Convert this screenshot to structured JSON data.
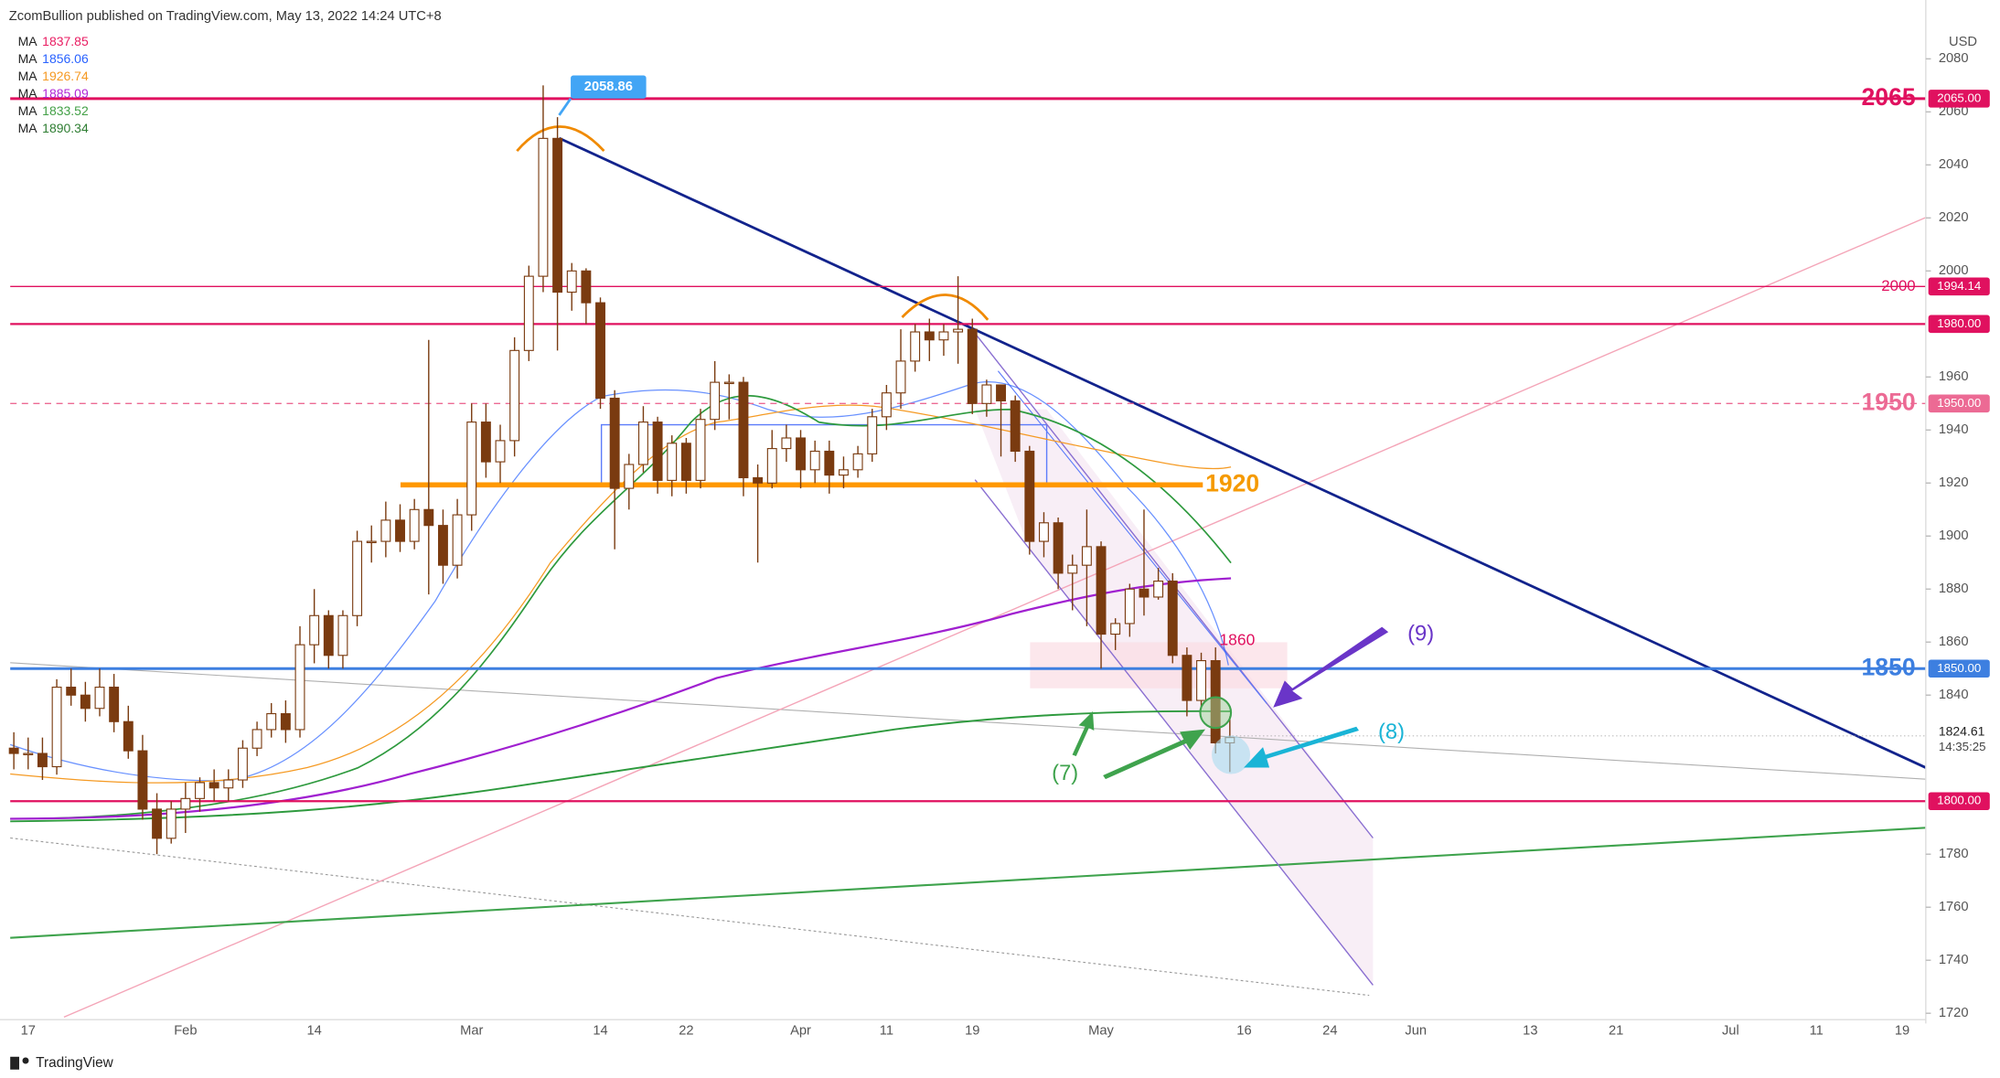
{
  "chart_data": {
    "type": "candlestick",
    "header": "ZcomBullion published on TradingView.com, May 13, 2022 14:24 UTC+8",
    "currency": "USD",
    "footer": "TradingView",
    "categories": [
      null,
      "17",
      null,
      null,
      null,
      null,
      null,
      null,
      null,
      null,
      null,
      null,
      "Feb",
      null,
      null,
      null,
      null,
      null,
      null,
      null,
      null,
      "14",
      null,
      null,
      null,
      null,
      null,
      null,
      null,
      null,
      null,
      null,
      "Mar",
      null,
      null,
      null,
      null,
      null,
      null,
      null,
      null,
      "14",
      null,
      null,
      null,
      null,
      null,
      "22",
      null,
      null,
      null,
      null,
      null,
      null,
      null,
      "Apr",
      null,
      null,
      null,
      null,
      null,
      "11",
      null,
      null,
      null,
      null,
      null,
      "19",
      null,
      null,
      null,
      null,
      null,
      null,
      null,
      null,
      "May",
      null,
      null,
      null,
      null,
      null,
      null,
      null,
      null,
      null,
      "16",
      null,
      null,
      null,
      null,
      null,
      "24",
      null,
      null,
      null,
      null,
      null,
      "Jun",
      null,
      null,
      null,
      null,
      null,
      null,
      null,
      "13",
      null,
      null,
      null,
      null,
      null,
      "21",
      null,
      null,
      null,
      null,
      null,
      null,
      null,
      "Jul",
      null,
      null,
      null,
      null,
      null,
      "11",
      null,
      null,
      null,
      null,
      null,
      "19"
    ],
    "open": [
      1820,
      1818,
      1818,
      1813,
      1843,
      1840,
      1835,
      1843,
      1830,
      1819,
      1797,
      1786,
      1797,
      1801,
      1807,
      1805,
      1808,
      1820,
      1827,
      1833,
      1827,
      1859,
      1870,
      1855,
      1870,
      1898,
      1898,
      1906,
      1898,
      1910,
      1904,
      1889,
      1908,
      1943,
      1928,
      1936,
      1970,
      1998,
      2050,
      1992,
      2000,
      1988,
      1952,
      1918,
      1927,
      1943,
      1921,
      1935,
      1921,
      1944,
      1958,
      1958,
      1922,
      1920,
      1933,
      1937,
      1925,
      1932,
      1923,
      1925,
      1931,
      1945,
      1954,
      1966,
      1977,
      1974,
      1977,
      1978,
      1950,
      1957,
      1951,
      1932,
      1898,
      1905,
      1886,
      1889,
      1896,
      1863,
      1867,
      1880,
      1877,
      1883,
      1855,
      1838,
      1853,
      1822,
      null,
      null,
      null,
      null,
      null,
      null,
      null,
      null,
      null,
      null,
      null,
      null,
      null,
      null,
      null,
      null,
      null,
      null,
      null,
      null,
      null,
      null,
      null,
      null,
      null,
      null,
      null,
      null,
      null,
      null,
      null,
      null,
      null,
      null,
      null,
      null,
      null,
      null,
      null,
      null,
      null,
      null,
      null,
      null,
      null,
      null,
      null
    ],
    "high": [
      1826,
      1824,
      1824,
      1846,
      1850,
      1845,
      1850,
      1848,
      1836,
      1825,
      1803,
      1800,
      1807,
      1809,
      1812,
      1812,
      1823,
      1830,
      1837,
      1838,
      1866,
      1880,
      1872,
      1872,
      1902,
      1904,
      1913,
      1912,
      1914,
      1974,
      1910,
      1914,
      1950,
      1950,
      1942,
      1975,
      2002,
      2070,
      2058,
      2003,
      2001,
      1990,
      1955,
      1931,
      1949,
      1945,
      1938,
      1937,
      1948,
      1966,
      1961,
      1960,
      1927,
      1940,
      1942,
      1940,
      1936,
      1936,
      1930,
      1934,
      1948,
      1957,
      1978,
      1980,
      1982,
      1980,
      1998,
      1982,
      1959,
      1957,
      1953,
      1934,
      1909,
      1907,
      1893,
      1910,
      1898,
      1869,
      1882,
      1910,
      1888,
      1886,
      1858,
      1856,
      1858,
      1832,
      null,
      null,
      null,
      null,
      null,
      null,
      null,
      null,
      null,
      null,
      null,
      null,
      null,
      null,
      null,
      null,
      null,
      null,
      null,
      null,
      null,
      null,
      null,
      null,
      null,
      null,
      null,
      null,
      null,
      null,
      null,
      null,
      null,
      null,
      null,
      null,
      null,
      null,
      null,
      null,
      null,
      null,
      null,
      null,
      null,
      null,
      null
    ],
    "low": [
      1812,
      1812,
      1808,
      1810,
      1836,
      1830,
      1832,
      1826,
      1816,
      1793,
      1780,
      1784,
      1788,
      1796,
      1800,
      1800,
      1805,
      1817,
      1824,
      1822,
      1824,
      1852,
      1850,
      1850,
      1866,
      1890,
      1892,
      1894,
      1895,
      1878,
      1882,
      1884,
      1902,
      1922,
      1920,
      1930,
      1966,
      1992,
      1970,
      1985,
      1980,
      1948,
      1895,
      1910,
      1924,
      1916,
      1915,
      1916,
      1918,
      1940,
      1944,
      1915,
      1890,
      1918,
      1928,
      1918,
      1920,
      1916,
      1918,
      1922,
      1928,
      1940,
      1948,
      1962,
      1966,
      1968,
      1965,
      1946,
      1945,
      1930,
      1928,
      1893,
      1892,
      1880,
      1872,
      1866,
      1850,
      1857,
      1862,
      1870,
      1876,
      1852,
      1832,
      1835,
      1818,
      1811,
      null,
      null,
      null,
      null,
      null,
      null,
      null,
      null,
      null,
      null,
      null,
      null,
      null,
      null,
      null,
      null,
      null,
      null,
      null,
      null,
      null,
      null,
      null,
      null,
      null,
      null,
      null,
      null,
      null,
      null,
      null,
      null,
      null,
      null,
      null,
      null,
      null,
      null,
      null,
      null,
      null,
      null,
      null,
      null,
      null,
      null,
      null
    ],
    "close": [
      1818,
      1818,
      1813,
      1843,
      1840,
      1835,
      1843,
      1830,
      1819,
      1797,
      1786,
      1797,
      1801,
      1807,
      1805,
      1808,
      1820,
      1827,
      1833,
      1827,
      1859,
      1870,
      1855,
      1870,
      1898,
      1898,
      1906,
      1898,
      1910,
      1904,
      1889,
      1908,
      1943,
      1928,
      1936,
      1970,
      1998,
      2050,
      1992,
      2000,
      1988,
      1952,
      1918,
      1927,
      1943,
      1921,
      1935,
      1921,
      1944,
      1958,
      1958,
      1922,
      1920,
      1933,
      1937,
      1925,
      1932,
      1923,
      1925,
      1931,
      1945,
      1954,
      1966,
      1977,
      1974,
      1977,
      1978,
      1950,
      1957,
      1951,
      1932,
      1898,
      1905,
      1886,
      1889,
      1896,
      1863,
      1867,
      1880,
      1877,
      1883,
      1855,
      1838,
      1853,
      1822,
      1824,
      null,
      null,
      null,
      null,
      null,
      null,
      null,
      null,
      null,
      null,
      null,
      null,
      null,
      null,
      null,
      null,
      null,
      null,
      null,
      null,
      null,
      null,
      null,
      null,
      null,
      null,
      null,
      null,
      null,
      null,
      null,
      null,
      null,
      null,
      null,
      null,
      null,
      null,
      null,
      null,
      null,
      null,
      null,
      null,
      null,
      null,
      null
    ],
    "up_color": "#ffffff",
    "down_color": "#7a3b10",
    "wick_color": "#7a3b10",
    "ylim": [
      1720,
      2080
    ],
    "yticks": [
      1720,
      1740,
      1760,
      1780,
      1840,
      1860,
      1880,
      1900,
      1920,
      1940,
      1960,
      2000,
      2020,
      2040,
      2060,
      2080
    ],
    "ma_legend": [
      {
        "label": "MA",
        "value": 1837.85,
        "color": "#e91e63"
      },
      {
        "label": "MA",
        "value": 1856.06,
        "color": "#2962ff"
      },
      {
        "label": "MA",
        "value": 1926.74,
        "color": "#f59a23"
      },
      {
        "label": "MA",
        "value": 1885.09,
        "color": "#b026d6"
      },
      {
        "label": "MA",
        "value": 1833.52,
        "color": "#43a047"
      },
      {
        "label": "MA",
        "value": 1890.34,
        "color": "#2e7d32"
      }
    ],
    "levels": [
      {
        "price": 2065,
        "tag": "2065.00",
        "label": "2065",
        "color": "#e0115f"
      },
      {
        "price": 1994.14,
        "label": "2000",
        "color": "#e0115f"
      },
      {
        "price": 1980,
        "tag": "1980.00",
        "color": "#e0115f"
      },
      {
        "price": 1950,
        "tag": "1950.00",
        "label": "1950",
        "color": "#ec6a94"
      },
      {
        "price": 1850,
        "tag": "1850.00",
        "label": "1850",
        "color": "#3d7fe0"
      },
      {
        "price": 1800,
        "tag": "1800.00",
        "color": "#e0115f"
      }
    ],
    "current_price": 1824.61,
    "countdown": "14:35:25",
    "peak_label": "2058.86",
    "annotations": {
      "support": "1920",
      "zone": "1860",
      "n9": "(9)",
      "n8": "(8)",
      "n7": "(7)"
    }
  }
}
